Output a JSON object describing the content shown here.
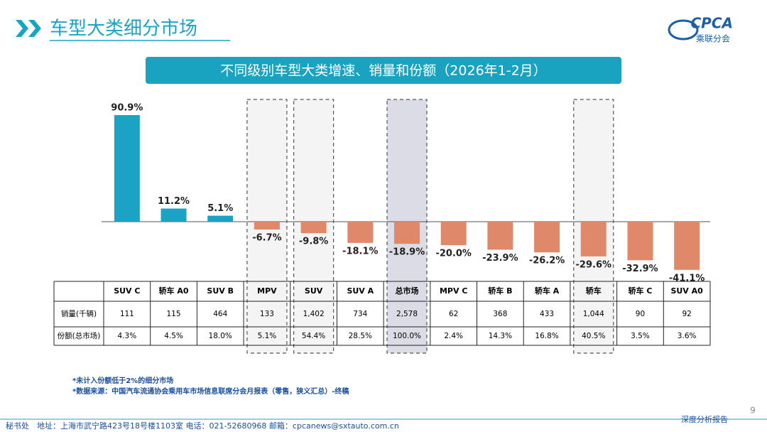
{
  "header": {
    "title": "车型大类细分市场"
  },
  "logo": {
    "text": "CPCA",
    "subtitle": "乘联分会"
  },
  "chart_data": {
    "type": "bar",
    "title": "不同级别车型大类增速、销量和份额（2026年1-2月）",
    "categories": [
      "SUV C",
      "轿车 A0",
      "SUV B",
      "MPV",
      "SUV",
      "SUV A",
      "总市场",
      "MPV C",
      "轿车 B",
      "轿车 A",
      "轿车",
      "轿车 C",
      "SUV A0"
    ],
    "values": [
      90.9,
      11.2,
      5.1,
      -6.7,
      -9.8,
      -18.1,
      -18.9,
      -20.0,
      -23.9,
      -26.2,
      -29.6,
      -32.9,
      -41.1
    ],
    "value_labels": [
      "90.9%",
      "11.2%",
      "5.1%",
      "-6.7%",
      "-9.8%",
      "-18.1%",
      "-18.9%",
      "-20.0%",
      "-23.9%",
      "-26.2%",
      "-29.6%",
      "-32.9%",
      "-41.1%"
    ],
    "positive_color": "#1ba3c6",
    "negative_color": "#e0896a"
  },
  "table": {
    "rows": [
      {
        "label": "销量(千辆)",
        "cells": [
          "111",
          "115",
          "464",
          "133",
          "1,402",
          "734",
          "2,578",
          "62",
          "368",
          "433",
          "1,044",
          "90",
          "92"
        ]
      },
      {
        "label": "份额(总市场)",
        "cells": [
          "4.3%",
          "4.5%",
          "18.0%",
          "5.1%",
          "54.4%",
          "28.5%",
          "100.0%",
          "2.4%",
          "14.3%",
          "16.8%",
          "40.5%",
          "3.5%",
          "3.6%"
        ]
      }
    ]
  },
  "footnotes": [
    "*未计入份额低于2%的细分市场",
    "*数据来源：中国汽车流通协会乘用车市场信息联席分会月报表（零售，狭义汇总）-终稿"
  ],
  "footer": {
    "address": "秘书处　地址：上海市武宁路423号18号楼1103室  电话：021-52680968   邮箱：cpcanews@sxtauto.com.cn",
    "report": "深度分析报告",
    "page": "9"
  }
}
